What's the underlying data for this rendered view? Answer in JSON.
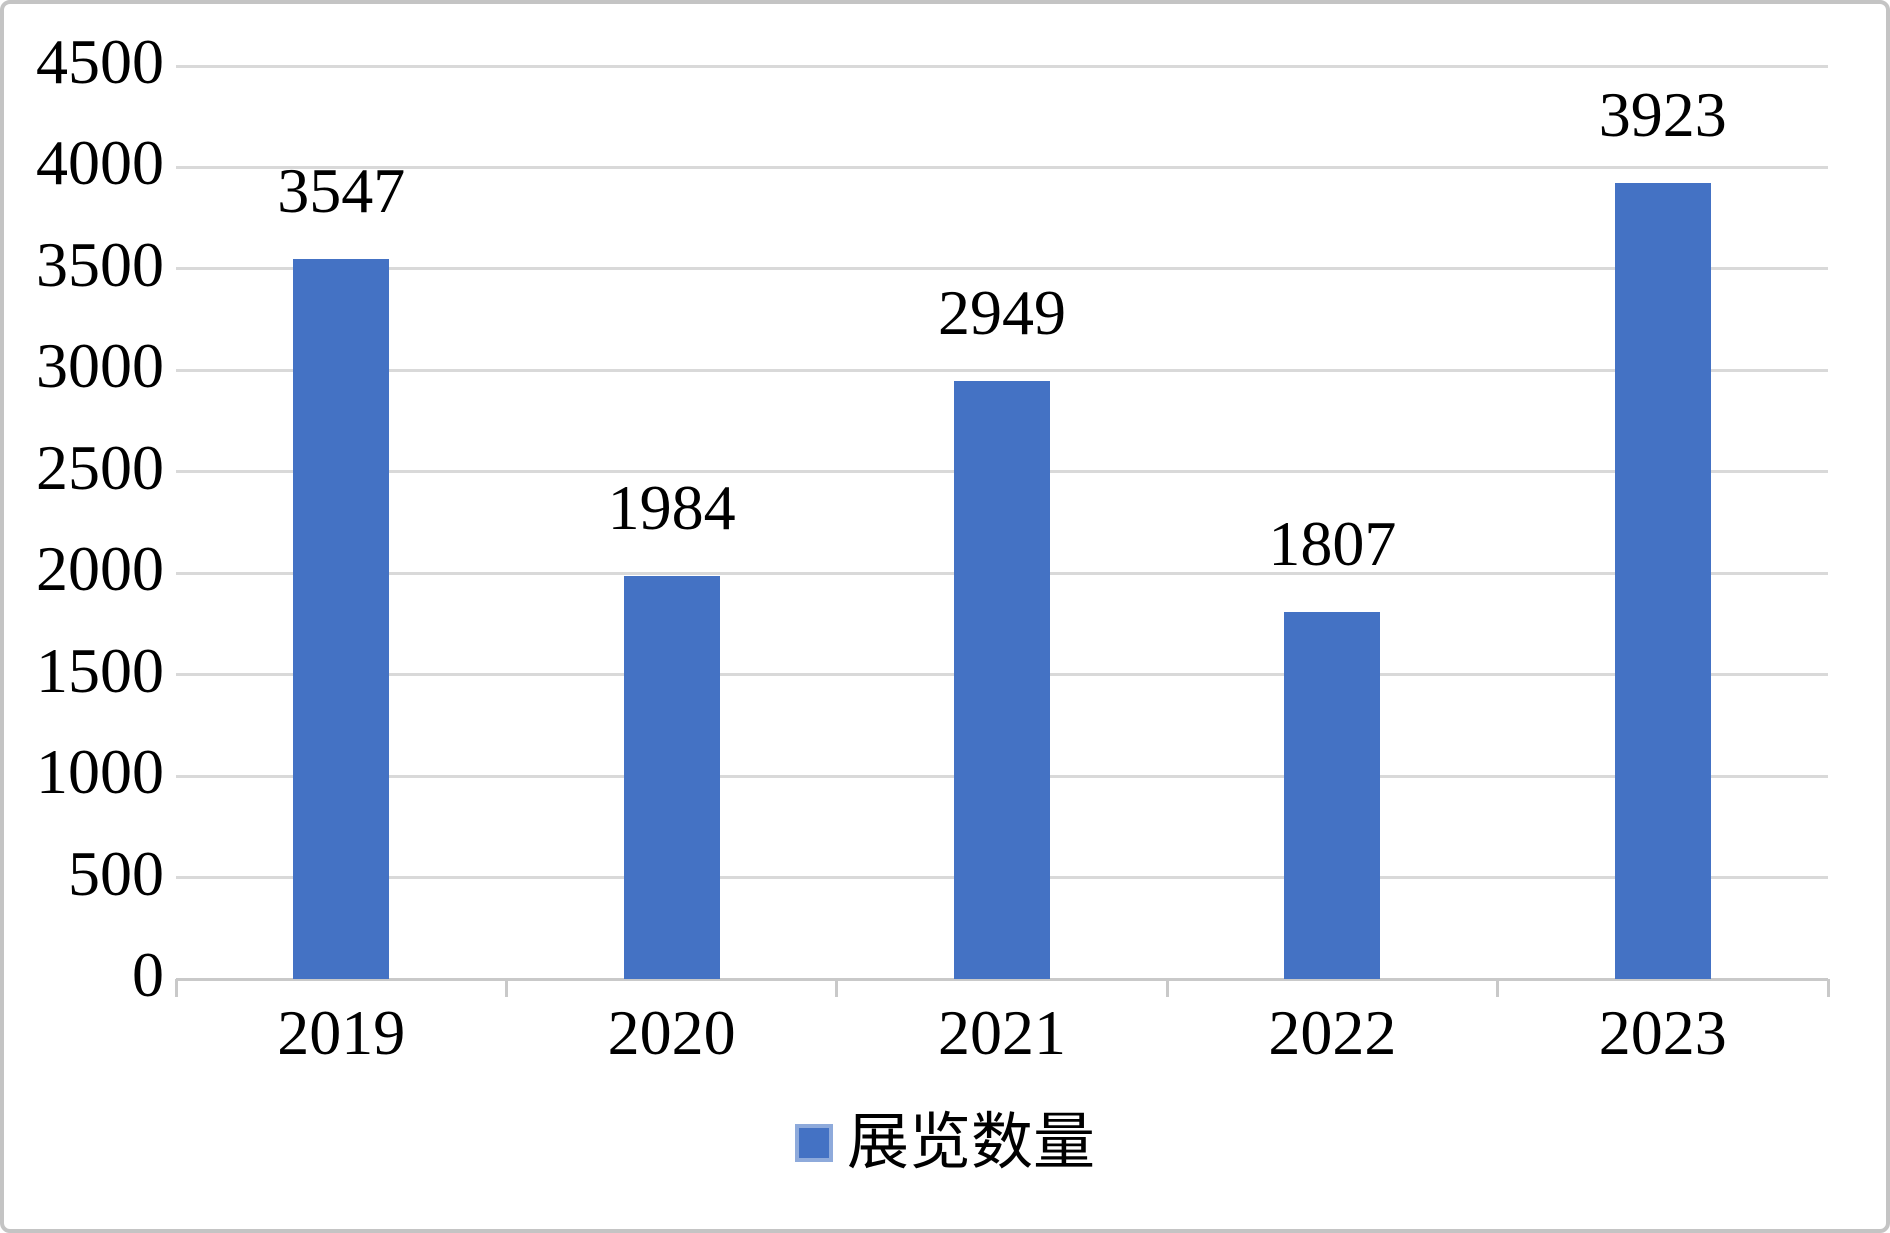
{
  "chart_data": {
    "type": "bar",
    "title": "",
    "xlabel": "",
    "ylabel": "",
    "categories": [
      "2019",
      "2020",
      "2021",
      "2022",
      "2023"
    ],
    "series": [
      {
        "name": "展览数量",
        "values": [
          3547,
          1984,
          2949,
          1807,
          3923
        ]
      }
    ],
    "data_labels": [
      "3547",
      "1984",
      "2949",
      "1807",
      "3923"
    ],
    "ylim": [
      0,
      4500
    ],
    "ytick_step": 500,
    "yticks": [
      0,
      500,
      1000,
      1500,
      2000,
      2500,
      3000,
      3500,
      4000,
      4500
    ],
    "ytick_labels": [
      "0",
      "500",
      "1000",
      "1500",
      "2000",
      "2500",
      "3000",
      "3500",
      "4000",
      "4500"
    ],
    "grid": "horizontal",
    "legend_position": "bottom",
    "colors": {
      "bar": "#4472c4",
      "legend_marker_fill": "#4472c4",
      "legend_marker_border": "#8eaadb",
      "gridline": "#d9d9d9",
      "axis_line": "#c9c9c9",
      "text": "#000000",
      "frame_border": "#c4c4c4",
      "background": "#ffffff"
    }
  }
}
